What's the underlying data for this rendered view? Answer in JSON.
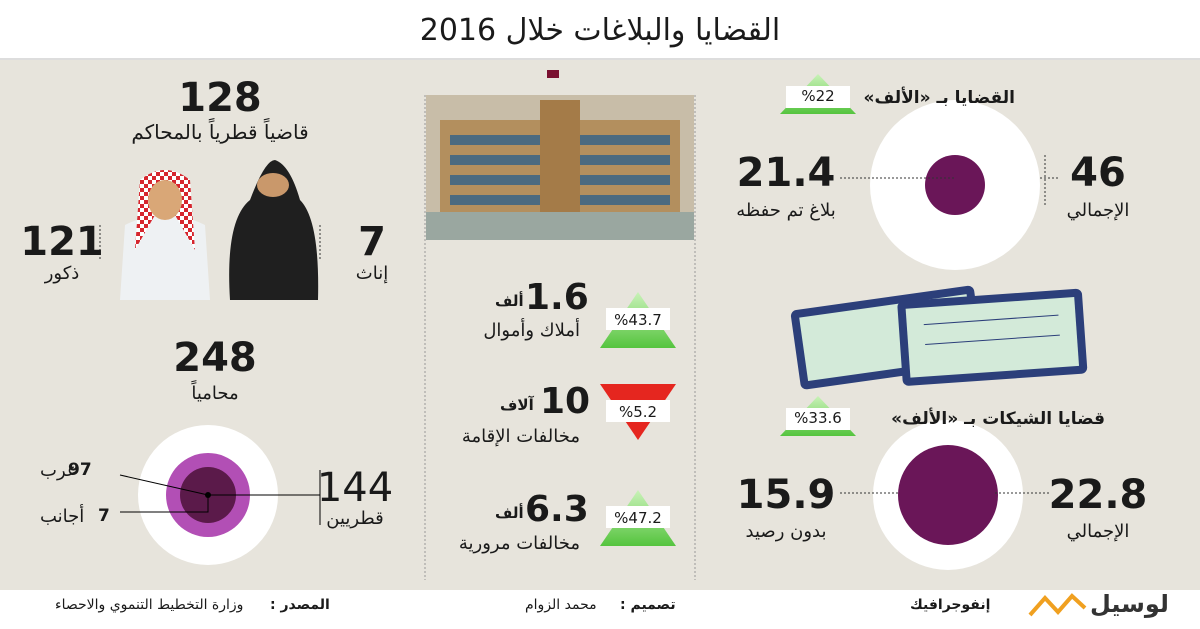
{
  "title": "القضايا والبلاغات خلال 2016",
  "judges": {
    "value": "128",
    "label": "قاضياً قطرياً بالمحاكم",
    "males": {
      "value": "121",
      "label": "ذكور"
    },
    "females": {
      "value": "7",
      "label": "إناث"
    }
  },
  "lawyers": {
    "value": "248",
    "label": "محامياً",
    "arabs": {
      "value": "97",
      "label": "عرب"
    },
    "foreigners": {
      "value": "7",
      "label": "أجانب"
    },
    "qataris": {
      "value": "144",
      "label": "قطريين"
    }
  },
  "items": [
    {
      "value": "1.6",
      "unit": "ألف",
      "label": "أملاك وأموال",
      "change": "%43.7"
    },
    {
      "value": "10",
      "unit": "آلاف",
      "label": "مخالفات الإقامة",
      "change": "%5.2"
    },
    {
      "value": "6.3",
      "unit": "ألف",
      "label": "مخالفات مرورية",
      "change": "%47.2"
    }
  ],
  "cases": {
    "title": "القضايا بـ «الألف»",
    "change": "%22",
    "total": {
      "value": "46",
      "label": "الإجمالي"
    },
    "archived": {
      "value": "21.4",
      "label": "بلاغ تم حفظه"
    }
  },
  "cheques": {
    "title": "قضايا الشيكات بـ «الألف»",
    "change": "%33.6",
    "total": {
      "value": "22.8",
      "label": "الإجمالي"
    },
    "bounced": {
      "value": "15.9",
      "label": "بدون رصيد"
    }
  },
  "footer": {
    "source_label": "المصدر :",
    "source": "وزارة التخطيط التنموي والاحصاء",
    "design_label": "تصميم :",
    "designer": "محمد الزوام",
    "section": "إنفوجرافيك",
    "brand": "لوسيل"
  }
}
